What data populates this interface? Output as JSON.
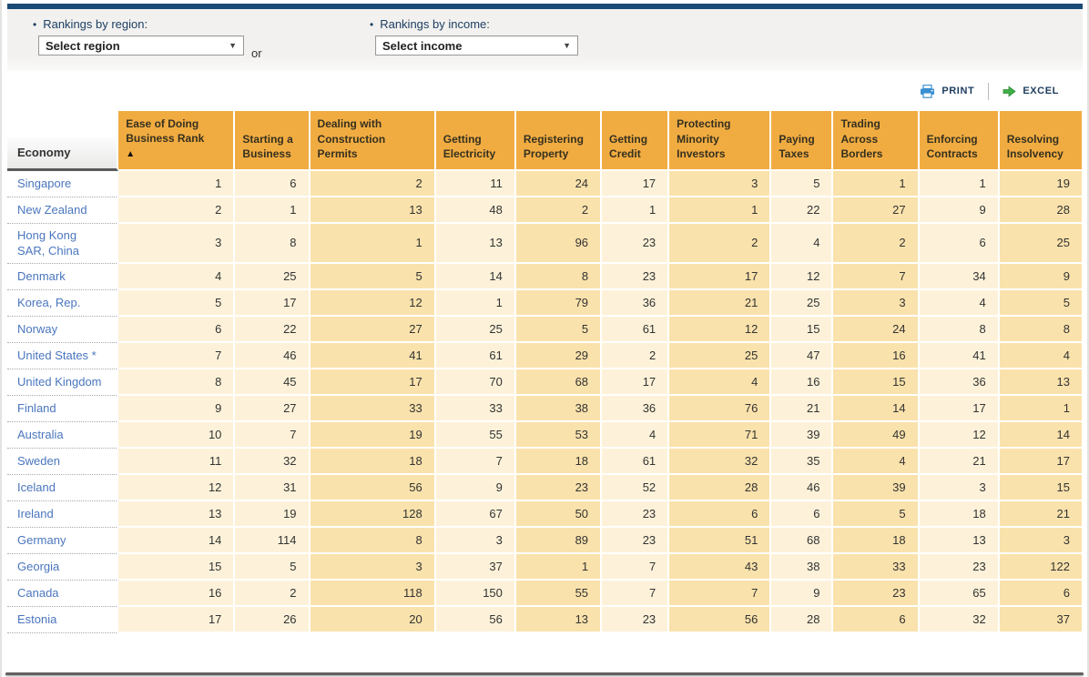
{
  "filters": {
    "region": {
      "label": "Rankings by region:",
      "selected": "Select region"
    },
    "income": {
      "label": "Rankings by income:",
      "selected": "Select income"
    },
    "or_text": "or"
  },
  "toolbar": {
    "print_label": "PRINT",
    "excel_label": "EXCEL"
  },
  "table": {
    "economy_header": "Economy",
    "sort_indicator": "▲",
    "columns": [
      {
        "label": "Ease of Doing Business Rank",
        "sorted": true,
        "shade": "light"
      },
      {
        "label": "Starting a Business",
        "sorted": false,
        "shade": "light"
      },
      {
        "label": "Dealing with Construction Permits",
        "sorted": false,
        "shade": "dark"
      },
      {
        "label": "Getting Electricity",
        "sorted": false,
        "shade": "light"
      },
      {
        "label": "Registering Property",
        "sorted": false,
        "shade": "dark"
      },
      {
        "label": "Getting Credit",
        "sorted": false,
        "shade": "light"
      },
      {
        "label": "Protecting Minority Investors",
        "sorted": false,
        "shade": "dark"
      },
      {
        "label": "Paying Taxes",
        "sorted": false,
        "shade": "light"
      },
      {
        "label": "Trading Across Borders",
        "sorted": false,
        "shade": "dark"
      },
      {
        "label": "Enforcing Contracts",
        "sorted": false,
        "shade": "light"
      },
      {
        "label": "Resolving Insolvency",
        "sorted": false,
        "shade": "dark"
      }
    ],
    "rows": [
      {
        "economy": "Singapore",
        "values": [
          1,
          6,
          2,
          11,
          24,
          17,
          3,
          5,
          1,
          1,
          19
        ]
      },
      {
        "economy": "New Zealand",
        "values": [
          2,
          1,
          13,
          48,
          2,
          1,
          1,
          22,
          27,
          9,
          28
        ]
      },
      {
        "economy": "Hong Kong SAR, China",
        "values": [
          3,
          8,
          1,
          13,
          96,
          23,
          2,
          4,
          2,
          6,
          25
        ]
      },
      {
        "economy": "Denmark",
        "values": [
          4,
          25,
          5,
          14,
          8,
          23,
          17,
          12,
          7,
          34,
          9
        ]
      },
      {
        "economy": "Korea, Rep.",
        "values": [
          5,
          17,
          12,
          1,
          79,
          36,
          21,
          25,
          3,
          4,
          5
        ]
      },
      {
        "economy": "Norway",
        "values": [
          6,
          22,
          27,
          25,
          5,
          61,
          12,
          15,
          24,
          8,
          8
        ]
      },
      {
        "economy": "United States *",
        "values": [
          7,
          46,
          41,
          61,
          29,
          2,
          25,
          47,
          16,
          41,
          4
        ]
      },
      {
        "economy": "United Kingdom",
        "values": [
          8,
          45,
          17,
          70,
          68,
          17,
          4,
          16,
          15,
          36,
          13
        ]
      },
      {
        "economy": "Finland",
        "values": [
          9,
          27,
          33,
          33,
          38,
          36,
          76,
          21,
          14,
          17,
          1
        ]
      },
      {
        "economy": "Australia",
        "values": [
          10,
          7,
          19,
          55,
          53,
          4,
          71,
          39,
          49,
          12,
          14
        ]
      },
      {
        "economy": "Sweden",
        "values": [
          11,
          32,
          18,
          7,
          18,
          61,
          32,
          35,
          4,
          21,
          17
        ]
      },
      {
        "economy": "Iceland",
        "values": [
          12,
          31,
          56,
          9,
          23,
          52,
          28,
          46,
          39,
          3,
          15
        ]
      },
      {
        "economy": "Ireland",
        "values": [
          13,
          19,
          128,
          67,
          50,
          23,
          6,
          6,
          5,
          18,
          21
        ]
      },
      {
        "economy": "Germany",
        "values": [
          14,
          114,
          8,
          3,
          89,
          23,
          51,
          68,
          18,
          13,
          3
        ]
      },
      {
        "economy": "Georgia",
        "values": [
          15,
          5,
          3,
          37,
          1,
          7,
          43,
          38,
          33,
          23,
          122
        ]
      },
      {
        "economy": "Canada",
        "values": [
          16,
          2,
          118,
          150,
          55,
          7,
          7,
          9,
          23,
          65,
          6
        ]
      },
      {
        "economy": "Estonia",
        "values": [
          17,
          26,
          20,
          56,
          13,
          23,
          56,
          28,
          6,
          32,
          37
        ]
      }
    ]
  },
  "colors": {
    "topbar": "#1A4A75",
    "header_orange": "#F1AC41",
    "cell_light": "#FDF2D9",
    "cell_dark": "#FAE2AC",
    "link_blue": "#4A76BE",
    "print_icon_blue": "#3A8FD1",
    "excel_icon_green": "#3FAF46"
  }
}
